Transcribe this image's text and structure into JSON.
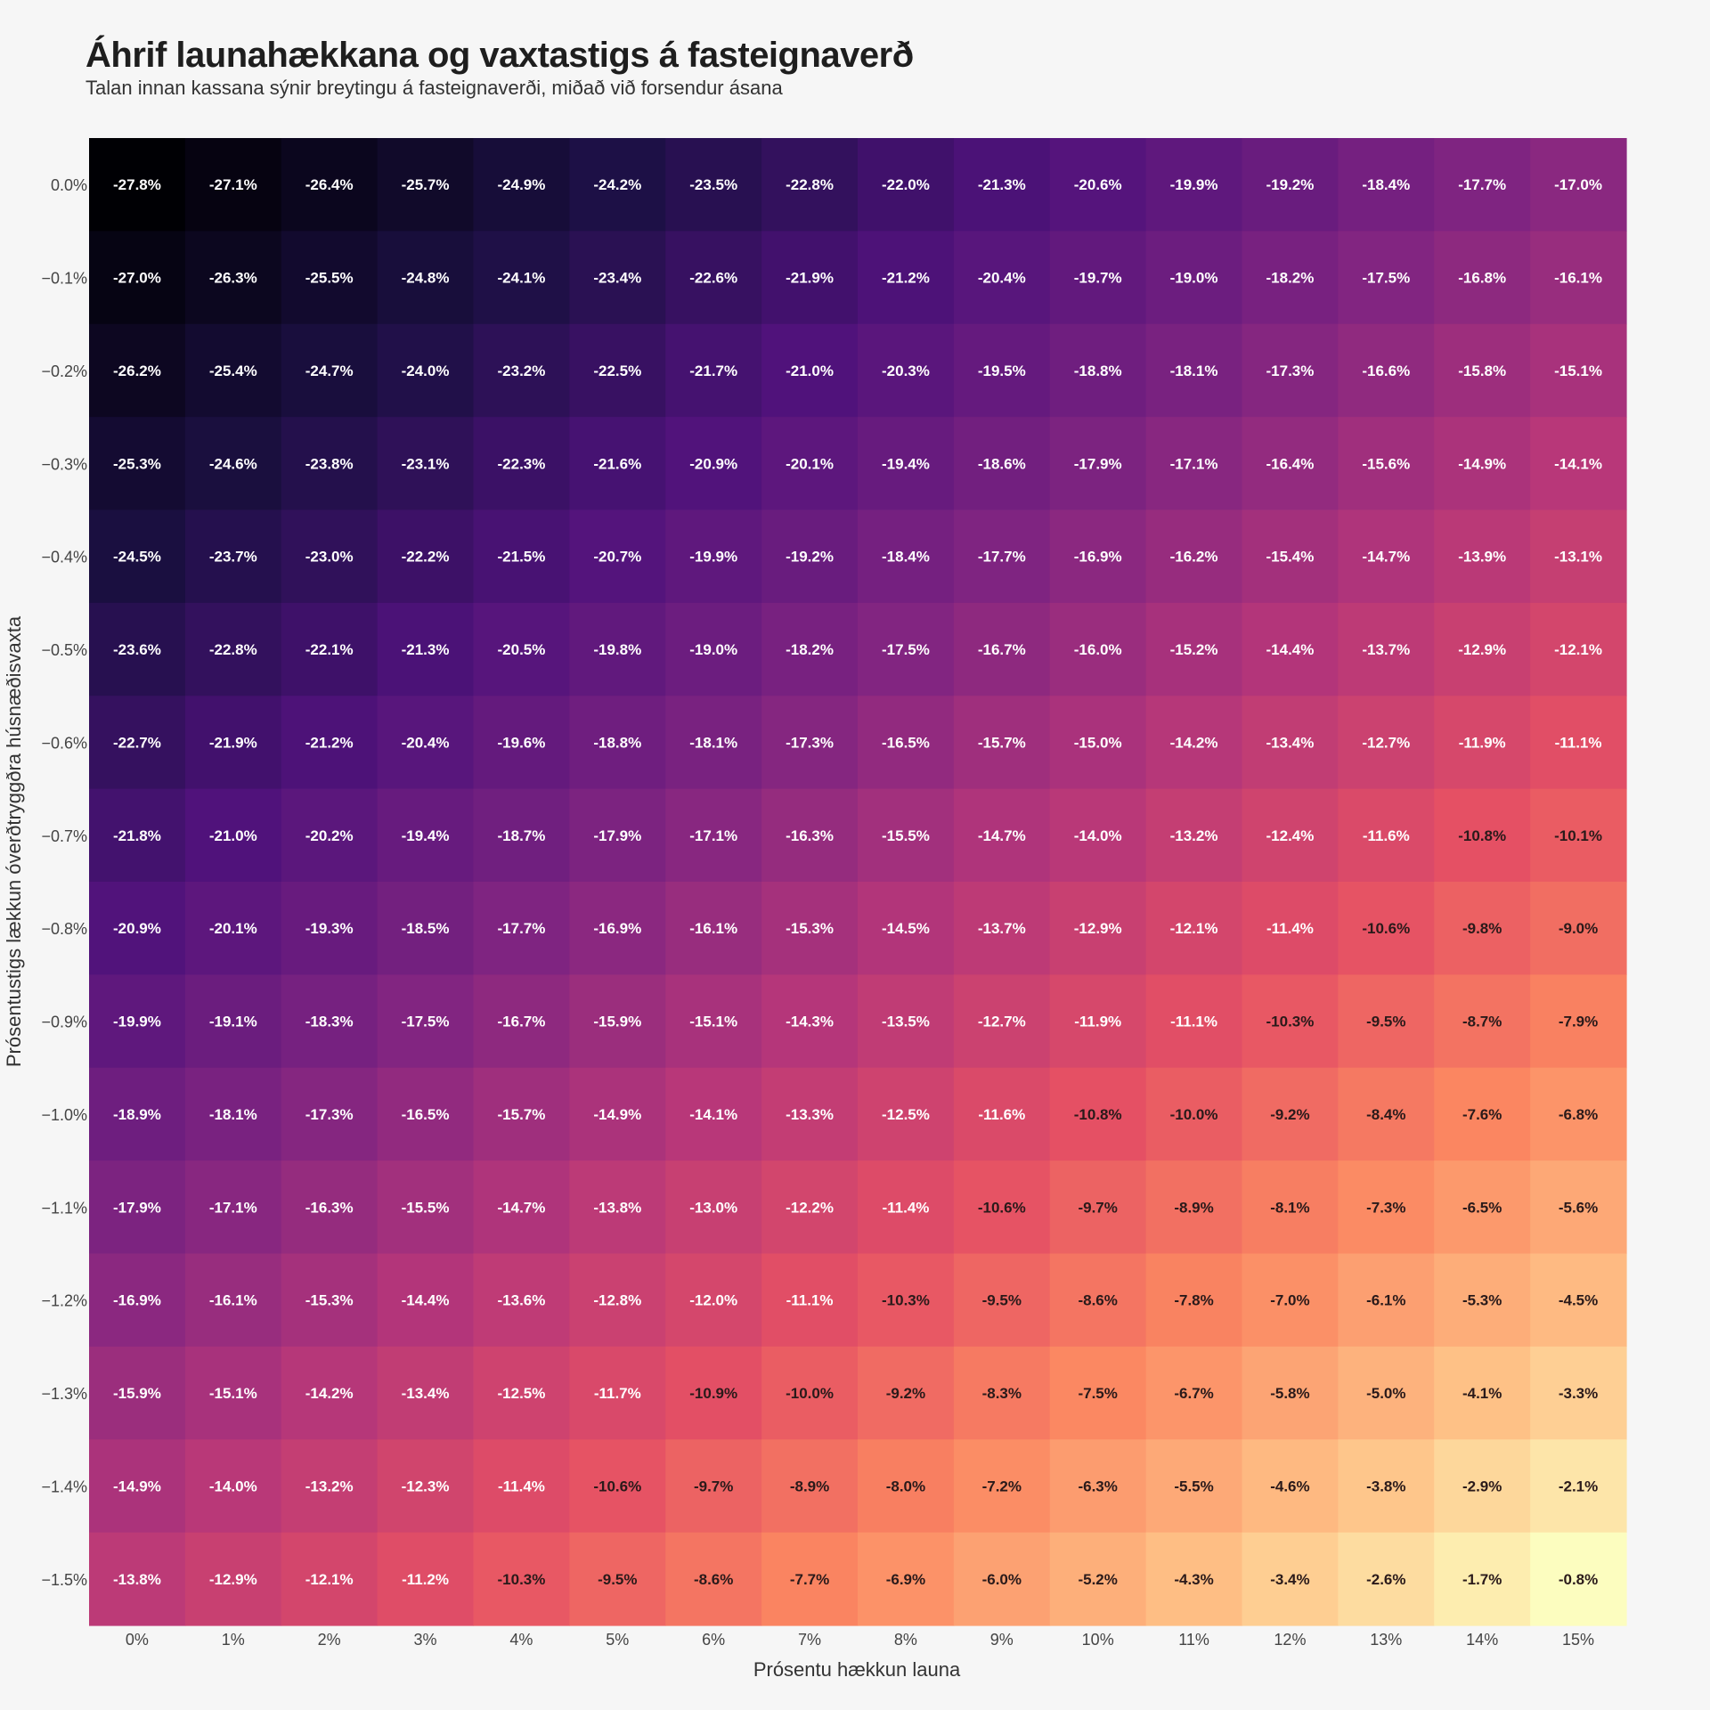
{
  "chart_data": {
    "type": "heatmap",
    "title": "Áhrif launahækkana og vaxtastigs á fasteignaverð",
    "subtitle": "Talan innan kassana sýnir breytingu á fasteignaverði, miðað við forsendur ásana",
    "xlabel": "Prósentu hækkun launa",
    "ylabel": "Prósentustigs lækkun óverðtryggðra húsnæðisvaxta",
    "colorscale": "magma",
    "x_categories": [
      "0%",
      "1%",
      "2%",
      "3%",
      "4%",
      "5%",
      "6%",
      "7%",
      "8%",
      "9%",
      "10%",
      "11%",
      "12%",
      "13%",
      "14%",
      "15%"
    ],
    "y_categories": [
      "0.0%",
      "−0.1%",
      "−0.2%",
      "−0.3%",
      "−0.4%",
      "−0.5%",
      "−0.6%",
      "−0.7%",
      "−0.8%",
      "−0.9%",
      "−1.0%",
      "−1.1%",
      "−1.2%",
      "−1.3%",
      "−1.4%",
      "−1.5%"
    ],
    "values": [
      [
        -27.8,
        -27.1,
        -26.4,
        -25.7,
        -24.9,
        -24.2,
        -23.5,
        -22.8,
        -22.0,
        -21.3,
        -20.6,
        -19.9,
        -19.2,
        -18.4,
        -17.7,
        -17.0
      ],
      [
        -27.0,
        -26.3,
        -25.5,
        -24.8,
        -24.1,
        -23.4,
        -22.6,
        -21.9,
        -21.2,
        -20.4,
        -19.7,
        -19.0,
        -18.2,
        -17.5,
        -16.8,
        -16.1
      ],
      [
        -26.2,
        -25.4,
        -24.7,
        -24.0,
        -23.2,
        -22.5,
        -21.7,
        -21.0,
        -20.3,
        -19.5,
        -18.8,
        -18.1,
        -17.3,
        -16.6,
        -15.8,
        -15.1
      ],
      [
        -25.3,
        -24.6,
        -23.8,
        -23.1,
        -22.3,
        -21.6,
        -20.9,
        -20.1,
        -19.4,
        -18.6,
        -17.9,
        -17.1,
        -16.4,
        -15.6,
        -14.9,
        -14.1
      ],
      [
        -24.5,
        -23.7,
        -23.0,
        -22.2,
        -21.5,
        -20.7,
        -19.9,
        -19.2,
        -18.4,
        -17.7,
        -16.9,
        -16.2,
        -15.4,
        -14.7,
        -13.9,
        -13.1
      ],
      [
        -23.6,
        -22.8,
        -22.1,
        -21.3,
        -20.5,
        -19.8,
        -19.0,
        -18.2,
        -17.5,
        -16.7,
        -16.0,
        -15.2,
        -14.4,
        -13.7,
        -12.9,
        -12.1
      ],
      [
        -22.7,
        -21.9,
        -21.2,
        -20.4,
        -19.6,
        -18.8,
        -18.1,
        -17.3,
        -16.5,
        -15.7,
        -15.0,
        -14.2,
        -13.4,
        -12.7,
        -11.9,
        -11.1
      ],
      [
        -21.8,
        -21.0,
        -20.2,
        -19.4,
        -18.7,
        -17.9,
        -17.1,
        -16.3,
        -15.5,
        -14.7,
        -14.0,
        -13.2,
        -12.4,
        -11.6,
        -10.8,
        -10.1
      ],
      [
        -20.9,
        -20.1,
        -19.3,
        -18.5,
        -17.7,
        -16.9,
        -16.1,
        -15.3,
        -14.5,
        -13.7,
        -12.9,
        -12.1,
        -11.4,
        -10.6,
        -9.8,
        -9.0
      ],
      [
        -19.9,
        -19.1,
        -18.3,
        -17.5,
        -16.7,
        -15.9,
        -15.1,
        -14.3,
        -13.5,
        -12.7,
        -11.9,
        -11.1,
        -10.3,
        -9.5,
        -8.7,
        -7.9
      ],
      [
        -18.9,
        -18.1,
        -17.3,
        -16.5,
        -15.7,
        -14.9,
        -14.1,
        -13.3,
        -12.5,
        -11.6,
        -10.8,
        -10.0,
        -9.2,
        -8.4,
        -7.6,
        -6.8
      ],
      [
        -17.9,
        -17.1,
        -16.3,
        -15.5,
        -14.7,
        -13.8,
        -13.0,
        -12.2,
        -11.4,
        -10.6,
        -9.7,
        -8.9,
        -8.1,
        -7.3,
        -6.5,
        -5.6
      ],
      [
        -16.9,
        -16.1,
        -15.3,
        -14.4,
        -13.6,
        -12.8,
        -12.0,
        -11.1,
        -10.3,
        -9.5,
        -8.6,
        -7.8,
        -7.0,
        -6.1,
        -5.3,
        -4.5
      ],
      [
        -15.9,
        -15.1,
        -14.2,
        -13.4,
        -12.5,
        -11.7,
        -10.9,
        -10.0,
        -9.2,
        -8.3,
        -7.5,
        -6.7,
        -5.8,
        -5.0,
        -4.1,
        -3.3
      ],
      [
        -14.9,
        -14.0,
        -13.2,
        -12.3,
        -11.4,
        -10.6,
        -9.7,
        -8.9,
        -8.0,
        -7.2,
        -6.3,
        -5.5,
        -4.6,
        -3.8,
        -2.9,
        -2.1
      ],
      [
        -13.8,
        -12.9,
        -12.1,
        -11.2,
        -10.3,
        -9.5,
        -8.6,
        -7.7,
        -6.9,
        -6.0,
        -5.2,
        -4.3,
        -3.4,
        -2.6,
        -1.7,
        -0.8
      ]
    ],
    "value_suffix": "%",
    "legend": "none",
    "grid": false
  }
}
